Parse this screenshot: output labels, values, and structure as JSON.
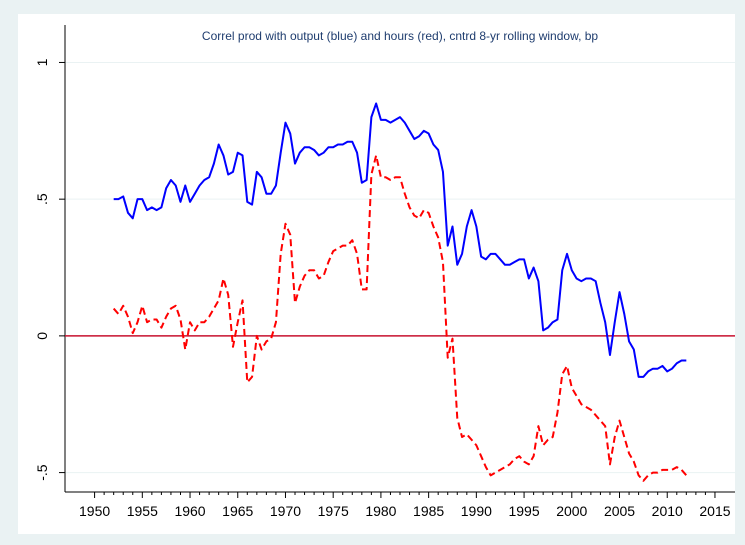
{
  "chart_data": {
    "type": "line",
    "title": "Correl prod with output (blue) and hours (red), cntrd 8-yr rolling window, bp",
    "x": [
      1952,
      1952.5,
      1953,
      1953.5,
      1954,
      1954.5,
      1955,
      1955.5,
      1956,
      1956.5,
      1957,
      1957.5,
      1958,
      1958.5,
      1959,
      1959.5,
      1960,
      1960.5,
      1961,
      1961.5,
      1962,
      1962.5,
      1963,
      1963.5,
      1964,
      1964.5,
      1965,
      1965.5,
      1966,
      1966.5,
      1967,
      1967.5,
      1968,
      1968.5,
      1969,
      1969.5,
      1970,
      1970.5,
      1971,
      1971.5,
      1972,
      1972.5,
      1973,
      1973.5,
      1974,
      1974.5,
      1975,
      1975.5,
      1976,
      1976.5,
      1977,
      1977.5,
      1978,
      1978.5,
      1979,
      1979.5,
      1980,
      1980.5,
      1981,
      1981.5,
      1982,
      1982.5,
      1983,
      1983.5,
      1984,
      1984.5,
      1985,
      1985.5,
      1986,
      1986.5,
      1987,
      1987.5,
      1988,
      1988.5,
      1989,
      1989.5,
      1990,
      1990.5,
      1991,
      1991.5,
      1992,
      1992.5,
      1993,
      1993.5,
      1994,
      1994.5,
      1995,
      1995.5,
      1996,
      1996.5,
      1997,
      1997.5,
      1998,
      1998.5,
      1999,
      1999.5,
      2000,
      2000.5,
      2001,
      2001.5,
      2002,
      2002.5,
      2003,
      2003.5,
      2004,
      2004.5,
      2005,
      2005.5,
      2006,
      2006.5,
      2007,
      2007.5,
      2008,
      2008.5,
      2009,
      2009.5,
      2010,
      2010.5,
      2011,
      2011.5,
      2012
    ],
    "series": [
      {
        "color": "#0000ff",
        "dash": "solid",
        "values": [
          0.5,
          0.5,
          0.51,
          0.45,
          0.43,
          0.5,
          0.5,
          0.46,
          0.47,
          0.46,
          0.47,
          0.54,
          0.57,
          0.55,
          0.49,
          0.55,
          0.49,
          0.52,
          0.55,
          0.57,
          0.58,
          0.63,
          0.7,
          0.66,
          0.59,
          0.6,
          0.67,
          0.66,
          0.49,
          0.48,
          0.6,
          0.58,
          0.52,
          0.52,
          0.55,
          0.67,
          0.78,
          0.74,
          0.63,
          0.67,
          0.69,
          0.69,
          0.68,
          0.66,
          0.67,
          0.69,
          0.69,
          0.7,
          0.7,
          0.71,
          0.71,
          0.67,
          0.56,
          0.57,
          0.8,
          0.85,
          0.79,
          0.79,
          0.78,
          0.79,
          0.8,
          0.78,
          0.75,
          0.72,
          0.73,
          0.75,
          0.74,
          0.7,
          0.68,
          0.6,
          0.33,
          0.4,
          0.26,
          0.3,
          0.4,
          0.46,
          0.4,
          0.29,
          0.28,
          0.3,
          0.3,
          0.28,
          0.26,
          0.26,
          0.27,
          0.28,
          0.28,
          0.21,
          0.25,
          0.2,
          0.02,
          0.03,
          0.05,
          0.06,
          0.24,
          0.3,
          0.24,
          0.21,
          0.2,
          0.21,
          0.21,
          0.2,
          0.12,
          0.05,
          -0.07,
          0.05,
          0.16,
          0.08,
          -0.02,
          -0.05,
          -0.15,
          -0.15,
          -0.13,
          -0.12,
          -0.12,
          -0.11,
          -0.13,
          -0.12,
          -0.1,
          -0.09,
          -0.09
        ]
      },
      {
        "color": "#ff0000",
        "dash": "dashed",
        "values": [
          0.1,
          0.08,
          0.11,
          0.07,
          0.01,
          0.05,
          0.11,
          0.05,
          0.06,
          0.06,
          0.03,
          0.07,
          0.1,
          0.11,
          0.06,
          -0.05,
          0.05,
          0.02,
          0.05,
          0.05,
          0.07,
          0.1,
          0.13,
          0.21,
          0.15,
          -0.04,
          0.05,
          0.13,
          -0.17,
          -0.15,
          0.0,
          -0.05,
          -0.02,
          -0.01,
          0.05,
          0.3,
          0.41,
          0.37,
          0.12,
          0.18,
          0.22,
          0.24,
          0.24,
          0.21,
          0.22,
          0.27,
          0.31,
          0.32,
          0.33,
          0.33,
          0.35,
          0.3,
          0.17,
          0.17,
          0.59,
          0.66,
          0.58,
          0.58,
          0.57,
          0.58,
          0.58,
          0.52,
          0.47,
          0.44,
          0.43,
          0.46,
          0.45,
          0.4,
          0.36,
          0.27,
          -0.08,
          -0.01,
          -0.3,
          -0.37,
          -0.36,
          -0.38,
          -0.4,
          -0.44,
          -0.48,
          -0.51,
          -0.5,
          -0.49,
          -0.48,
          -0.47,
          -0.45,
          -0.44,
          -0.46,
          -0.47,
          -0.44,
          -0.33,
          -0.4,
          -0.38,
          -0.37,
          -0.28,
          -0.14,
          -0.11,
          -0.19,
          -0.22,
          -0.25,
          -0.26,
          -0.27,
          -0.29,
          -0.31,
          -0.33,
          -0.47,
          -0.37,
          -0.31,
          -0.37,
          -0.43,
          -0.46,
          -0.51,
          -0.53,
          -0.51,
          -0.5,
          -0.5,
          -0.49,
          -0.49,
          -0.49,
          -0.48,
          -0.49,
          -0.51
        ]
      }
    ],
    "hline": {
      "value": 0,
      "color": "#c8102e"
    },
    "xlim": [
      1946.9,
      2017.1
    ],
    "xticks": [
      1950,
      1955,
      1960,
      1965,
      1970,
      1975,
      1980,
      1985,
      1990,
      1995,
      2000,
      2005,
      2010,
      2015
    ],
    "ylim": [
      -0.571,
      1.137
    ],
    "yticks": [
      {
        "value": -0.5,
        "label": "-.5"
      },
      0,
      {
        "value": 0.5,
        "label": ".5"
      },
      1
    ],
    "grid": true
  }
}
